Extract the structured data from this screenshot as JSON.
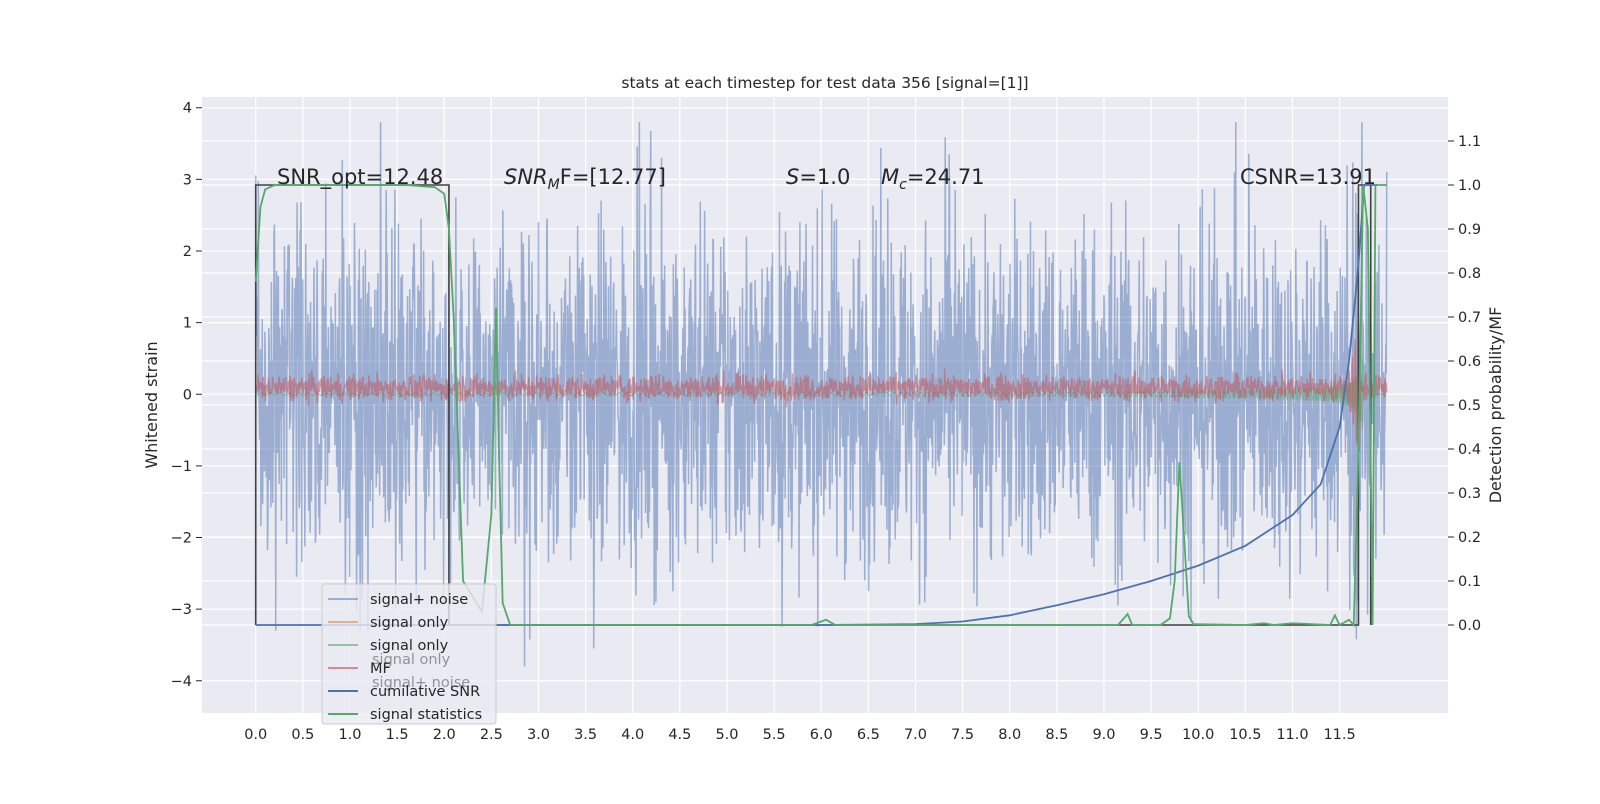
{
  "chart_data": {
    "type": "line",
    "title": "stats at each timestep for test data 356 [signal=[1]]",
    "xlabel": "",
    "ylabel": "Whitened strain",
    "ylabel_right": "Detection probability/MF",
    "xlim": [
      -0.57,
      12.65
    ],
    "ylim": [
      -4.45,
      4.15
    ],
    "ylim_right": [
      -0.2,
      1.2
    ],
    "grid": true,
    "x_ticks": [
      "0.0",
      "0.5",
      "1.0",
      "1.5",
      "2.0",
      "2.5",
      "3.0",
      "3.5",
      "4.0",
      "4.5",
      "5.0",
      "5.5",
      "6.0",
      "6.5",
      "7.0",
      "7.5",
      "8.0",
      "8.5",
      "9.0",
      "9.5",
      "10.0",
      "10.5",
      "11.0",
      "11.5"
    ],
    "y_ticks": [
      "4",
      "3",
      "2",
      "1",
      "0",
      "−1",
      "−2",
      "−3",
      "−4"
    ],
    "y_ticks_right": [
      "1.1",
      "1.0",
      "0.9",
      "0.8",
      "0.7",
      "0.6",
      "0.5",
      "0.4",
      "0.3",
      "0.2",
      "0.1",
      "0.0"
    ],
    "annotations": {
      "snr_opt": "SNR_opt=12.48",
      "snr_mf_base": "SNR",
      "snr_mf_sub": "M",
      "snr_mf_rest": "F=[12.77]",
      "s_var": "S",
      "s_rest": "=1.0",
      "mc_var": "M",
      "mc_sub": "c",
      "mc_rest": "=24.71",
      "csnr": "CSNR=13.91"
    },
    "legend_placement": "lower-left",
    "legend": [
      "signal+ noise",
      "signal only",
      "signal only",
      "MF",
      "cumilative SNR",
      "signal statistics"
    ],
    "legend_ghost": [
      "signal+ noise",
      "signal only"
    ],
    "series": [
      {
        "name": "signal+ noise",
        "color": "#4c72b0",
        "alpha": 0.5,
        "axis": "left",
        "x_range": [
          0.0,
          12.0
        ],
        "envelope": {
          "typical": 1.9,
          "peak": 3.8
        }
      },
      {
        "name": "signal only",
        "color": "#55a868",
        "alpha": 0.5,
        "axis": "left",
        "x_range": [
          0.0,
          12.0
        ],
        "chirp_end": 11.75,
        "amplitude_max": 1.5
      },
      {
        "name": "MF",
        "color": "#c44e52",
        "alpha": 0.5,
        "axis": "left",
        "x_range": [
          0.0,
          12.0
        ],
        "amplitude": 0.28
      },
      {
        "name": "cumilative SNR",
        "color": "#4c72b0",
        "axis": "right",
        "x": [
          0.0,
          6.0,
          7.0,
          7.5,
          8.0,
          8.5,
          9.0,
          9.5,
          10.0,
          10.5,
          11.0,
          11.3,
          11.5,
          11.6,
          11.7,
          11.76,
          11.9
        ],
        "y": [
          0.0,
          0.0,
          0.002,
          0.008,
          0.022,
          0.045,
          0.07,
          0.1,
          0.135,
          0.18,
          0.25,
          0.32,
          0.45,
          0.6,
          0.82,
          1.0,
          1.0
        ]
      },
      {
        "name": "signal statistics",
        "color": "#55a868",
        "axis": "right",
        "x": [
          0.0,
          0.05,
          0.1,
          0.2,
          0.4,
          1.0,
          1.6,
          1.9,
          2.0,
          2.05,
          2.1,
          2.15,
          2.2,
          2.4,
          2.5,
          2.55,
          2.58,
          2.62,
          2.7,
          3.0,
          5.9,
          6.05,
          6.15,
          9.15,
          9.25,
          9.3,
          9.6,
          9.7,
          9.75,
          9.8,
          9.85,
          9.9,
          9.95,
          10.5,
          10.7,
          10.8,
          11.0,
          11.4,
          11.45,
          11.5,
          11.6,
          11.65,
          11.7,
          11.75,
          11.8,
          11.85,
          11.88,
          12.0
        ],
        "y": [
          0.78,
          0.95,
          0.99,
          1.0,
          1.0,
          1.0,
          1.0,
          0.995,
          0.98,
          0.9,
          0.7,
          0.4,
          0.1,
          0.03,
          0.25,
          0.72,
          0.4,
          0.05,
          0.0,
          0.0,
          0.0,
          0.012,
          0.0,
          0.0,
          0.025,
          0.0,
          0.0,
          0.015,
          0.1,
          0.37,
          0.2,
          0.02,
          0.002,
          0.0,
          0.004,
          0.0,
          0.004,
          0.0,
          0.022,
          0.0,
          0.012,
          0.0,
          0.4,
          1.0,
          0.9,
          0.0,
          1.0,
          1.0
        ]
      },
      {
        "name": "step marker",
        "color": "#404040",
        "axis": "right",
        "legend": false,
        "x": [
          0.0,
          0.0,
          2.05,
          2.05,
          11.7,
          11.7,
          11.83,
          11.83
        ],
        "y": [
          0.0,
          1.0,
          1.0,
          0.0,
          0.0,
          1.0,
          1.0,
          0.0
        ]
      }
    ]
  }
}
